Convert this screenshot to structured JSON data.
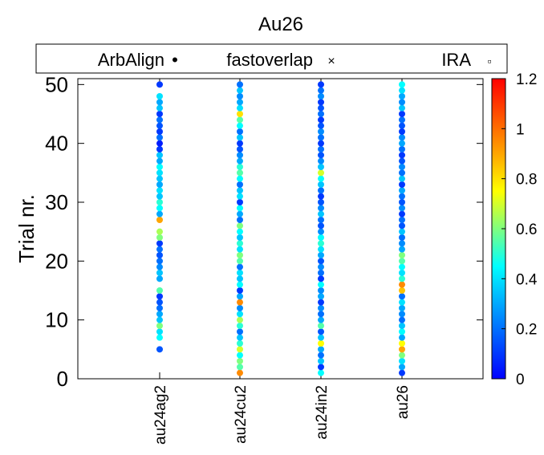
{
  "chart_data": {
    "type": "scatter",
    "title": "Au26",
    "ylabel": "Trial nr.",
    "xlabel": "",
    "ylim": [
      0,
      51
    ],
    "yticks": [
      0,
      10,
      20,
      30,
      40,
      50
    ],
    "categories": [
      "au24ag2",
      "au24cu2",
      "au24in2",
      "au26"
    ],
    "legend": {
      "position": "top",
      "entries": [
        {
          "label": "ArbAlign",
          "marker": "•"
        },
        {
          "label": "fastoverlap",
          "marker": "×"
        },
        {
          "label": "IRA",
          "marker": "▫"
        }
      ]
    },
    "colorbar": {
      "min": 0,
      "max": 1.2,
      "ticks": [
        0,
        0.2,
        0.4,
        0.6,
        0.8,
        1,
        1.2
      ],
      "colormap": "jet"
    },
    "series": [
      {
        "category": "au24ag2",
        "trials": [
          5,
          7,
          8,
          9,
          10,
          11,
          12,
          13,
          14,
          15,
          17,
          18,
          19,
          20,
          21,
          22,
          23,
          24,
          25,
          27,
          28,
          29,
          30,
          31,
          32,
          33,
          34,
          35,
          36,
          37,
          38,
          39,
          40,
          41,
          42,
          43,
          44,
          45,
          46,
          47,
          48,
          50
        ],
        "values": [
          0.15,
          0.45,
          0.4,
          0.6,
          0.35,
          0.3,
          0.2,
          0.15,
          0.1,
          0.55,
          0.3,
          0.35,
          0.25,
          0.2,
          0.15,
          0.2,
          0.1,
          0.6,
          0.65,
          0.9,
          0.3,
          0.45,
          0.5,
          0.35,
          0.4,
          0.3,
          0.35,
          0.4,
          0.45,
          0.3,
          0.35,
          0.1,
          0.05,
          0.2,
          0.1,
          0.15,
          0.2,
          0.1,
          0.35,
          0.3,
          0.4,
          0.1
        ]
      },
      {
        "category": "au24cu2",
        "trials": [
          1,
          2,
          3,
          4,
          5,
          6,
          7,
          8,
          9,
          10,
          11,
          12,
          13,
          14,
          15,
          16,
          17,
          18,
          19,
          20,
          21,
          22,
          23,
          24,
          25,
          26,
          27,
          28,
          29,
          30,
          31,
          32,
          33,
          34,
          35,
          36,
          37,
          38,
          39,
          40,
          41,
          42,
          43,
          44,
          45,
          46,
          47,
          48,
          49,
          50
        ],
        "values": [
          0.95,
          0.55,
          0.6,
          0.45,
          0.7,
          0.5,
          0.35,
          0.2,
          0.5,
          0.65,
          0.4,
          0.25,
          0.95,
          0.3,
          0.1,
          0.45,
          0.35,
          0.4,
          0.2,
          0.55,
          0.6,
          0.4,
          0.5,
          0.35,
          0.45,
          0.6,
          0.2,
          0.3,
          0.45,
          0.1,
          0.4,
          0.35,
          0.2,
          0.45,
          0.55,
          0.5,
          0.3,
          0.25,
          0.15,
          0.1,
          0.35,
          0.2,
          0.45,
          0.55,
          0.8,
          0.4,
          0.3,
          0.25,
          0.35,
          0.2
        ]
      },
      {
        "category": "au24in2",
        "trials": [
          1,
          2,
          3,
          4,
          5,
          6,
          7,
          8,
          9,
          10,
          11,
          12,
          13,
          14,
          15,
          16,
          17,
          18,
          19,
          20,
          21,
          22,
          23,
          24,
          25,
          26,
          27,
          28,
          29,
          30,
          31,
          32,
          33,
          34,
          35,
          36,
          37,
          38,
          39,
          40,
          41,
          42,
          43,
          44,
          45,
          46,
          47,
          48,
          49,
          50
        ],
        "values": [
          0.45,
          0.1,
          0.35,
          0.2,
          0.3,
          0.75,
          0.35,
          0.15,
          0.55,
          0.3,
          0.2,
          0.25,
          0.1,
          0.3,
          0.25,
          0.45,
          0.1,
          0.2,
          0.25,
          0.15,
          0.3,
          0.4,
          0.5,
          0.45,
          0.25,
          0.15,
          0.2,
          0.35,
          0.25,
          0.15,
          0.1,
          0.2,
          0.35,
          0.45,
          0.7,
          0.35,
          0.25,
          0.15,
          0.2,
          0.1,
          0.2,
          0.25,
          0.15,
          0.1,
          0.2,
          0.15,
          0.1,
          0.25,
          0.2,
          0.1
        ]
      },
      {
        "category": "au26",
        "trials": [
          1,
          2,
          3,
          4,
          5,
          6,
          7,
          8,
          9,
          10,
          11,
          12,
          13,
          14,
          15,
          16,
          17,
          18,
          19,
          20,
          21,
          22,
          23,
          24,
          25,
          26,
          27,
          28,
          29,
          30,
          31,
          32,
          33,
          34,
          35,
          36,
          37,
          38,
          39,
          40,
          41,
          42,
          43,
          44,
          45,
          46,
          47,
          48,
          49,
          50
        ],
        "values": [
          0.1,
          0.3,
          0.4,
          0.6,
          0.9,
          0.75,
          0.3,
          0.45,
          0.35,
          0.2,
          0.25,
          0.3,
          0.4,
          0.2,
          0.85,
          0.95,
          0.5,
          0.4,
          0.45,
          0.55,
          0.6,
          0.3,
          0.25,
          0.2,
          0.35,
          0.15,
          0.2,
          0.1,
          0.25,
          0.15,
          0.2,
          0.3,
          0.1,
          0.35,
          0.2,
          0.25,
          0.15,
          0.1,
          0.2,
          0.3,
          0.25,
          0.1,
          0.15,
          0.2,
          0.1,
          0.35,
          0.25,
          0.3,
          0.4,
          0.45
        ]
      }
    ]
  }
}
